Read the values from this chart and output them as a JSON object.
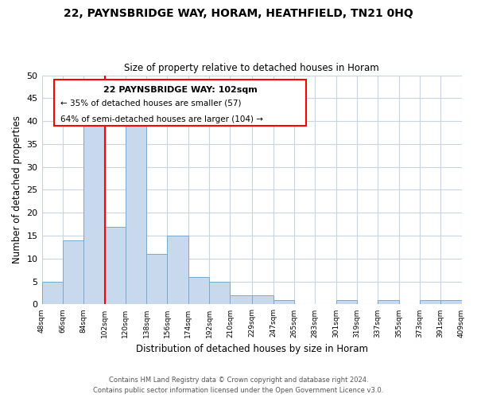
{
  "title_line1": "22, PAYNSBRIDGE WAY, HORAM, HEATHFIELD, TN21 0HQ",
  "title_line2": "Size of property relative to detached houses in Horam",
  "xlabel": "Distribution of detached houses by size in Horam",
  "ylabel": "Number of detached properties",
  "bar_edges": [
    48,
    66,
    84,
    102,
    120,
    138,
    156,
    174,
    192,
    210,
    229,
    247,
    265,
    283,
    301,
    319,
    337,
    355,
    373,
    391,
    409
  ],
  "bar_heights": [
    5,
    14,
    40,
    17,
    41,
    11,
    15,
    6,
    5,
    2,
    2,
    1,
    0,
    0,
    1,
    0,
    1,
    0,
    1,
    1
  ],
  "bar_color": "#c8d8ed",
  "bar_edgecolor": "#7aa8cc",
  "vline_x": 102,
  "vline_color": "red",
  "ylim": [
    0,
    50
  ],
  "yticks": [
    0,
    5,
    10,
    15,
    20,
    25,
    30,
    35,
    40,
    45,
    50
  ],
  "tick_labels": [
    "48sqm",
    "66sqm",
    "84sqm",
    "102sqm",
    "120sqm",
    "138sqm",
    "156sqm",
    "174sqm",
    "192sqm",
    "210sqm",
    "229sqm",
    "247sqm",
    "265sqm",
    "283sqm",
    "301sqm",
    "319sqm",
    "337sqm",
    "355sqm",
    "373sqm",
    "391sqm",
    "409sqm"
  ],
  "annotation_title": "22 PAYNSBRIDGE WAY: 102sqm",
  "annotation_line2": "← 35% of detached houses are smaller (57)",
  "annotation_line3": "64% of semi-detached houses are larger (104) →",
  "footer_line1": "Contains HM Land Registry data © Crown copyright and database right 2024.",
  "footer_line2": "Contains public sector information licensed under the Open Government Licence v3.0.",
  "background_color": "#ffffff",
  "grid_color": "#c8d4e0"
}
